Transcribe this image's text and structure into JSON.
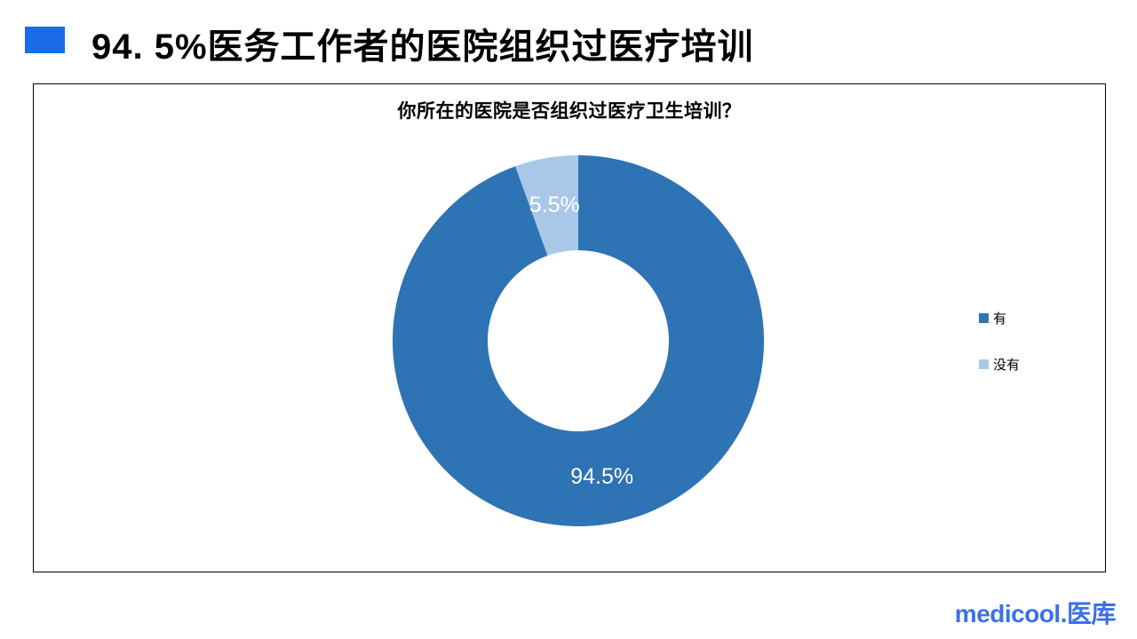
{
  "header": {
    "bullet_color": "#1A6BE8",
    "title": "94. 5%医务工作者的医院组织过医疗培训"
  },
  "chart_data": {
    "type": "pie",
    "subtype": "donut",
    "title": "你所在的医院是否组织过医疗卫生培训？",
    "categories": [
      "有",
      "没有"
    ],
    "values": [
      94.5,
      5.5
    ],
    "data_labels": [
      "94.5%",
      "5.5%"
    ],
    "colors": [
      "#2E73B4",
      "#A9C8E8"
    ],
    "label_color": "#ffffff",
    "hole_ratio": 0.49,
    "start_angle_deg": 0,
    "direction": "clockwise",
    "legend_position": "right",
    "legend_entries": [
      "有",
      "没有"
    ]
  },
  "footer": {
    "logo_text": "medicool.医库",
    "logo_color": "#3B70E8"
  }
}
